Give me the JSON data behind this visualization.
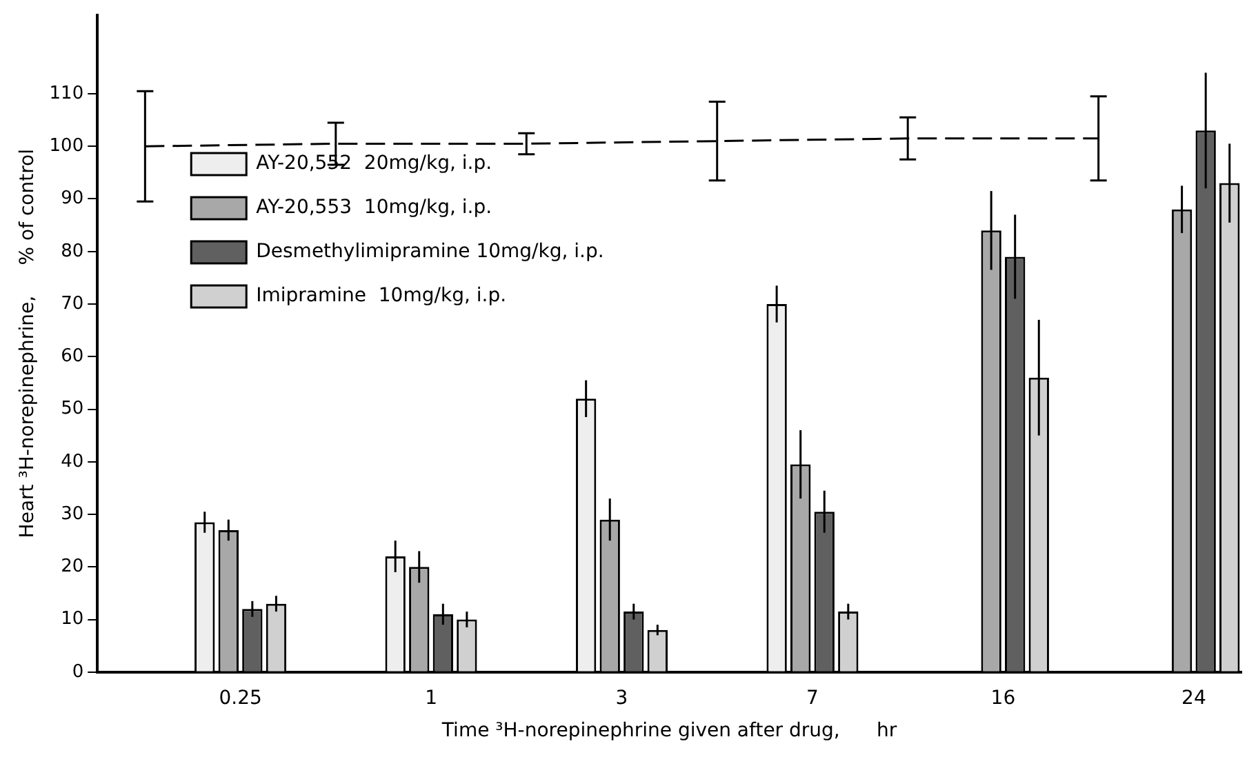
{
  "chart_data": {
    "type": "bar",
    "xlabel": "Time ³H-norepinephrine given after drug,      hr",
    "ylabel": "Heart ³H-norepinephrine,     % of control",
    "categories": [
      null,
      "0.25",
      null,
      "1",
      null,
      "3",
      null,
      "7",
      null,
      "16",
      null,
      "24"
    ],
    "series": [
      {
        "name": "AY-20,552  20mg/kg, i.p.",
        "color": "#eeeeee",
        "values": [
          null,
          28.5,
          null,
          22,
          null,
          52,
          null,
          70,
          null,
          null,
          null,
          null
        ],
        "errors": [
          null,
          2,
          null,
          3,
          null,
          3.5,
          null,
          3.5,
          null,
          null,
          null,
          null
        ]
      },
      {
        "name": "AY-20,553  10mg/kg, i.p.",
        "color": "#a8a8a8",
        "values": [
          null,
          27,
          null,
          20,
          null,
          29,
          null,
          39.5,
          null,
          84,
          null,
          88
        ],
        "errors": [
          null,
          2,
          null,
          3,
          null,
          4,
          null,
          6.5,
          null,
          7.5,
          null,
          4.5
        ]
      },
      {
        "name": "Desmethylimipramine 10mg/kg, i.p.",
        "color": "#606060",
        "values": [
          null,
          12,
          null,
          11,
          null,
          11.5,
          null,
          30.5,
          null,
          79,
          null,
          103
        ],
        "errors": [
          null,
          1.5,
          null,
          2,
          null,
          1.5,
          null,
          4,
          null,
          8,
          null,
          11
        ]
      },
      {
        "name": "Imipramine  10mg/kg, i.p.",
        "color": "#d0d0d0",
        "values": [
          null,
          13,
          null,
          10,
          null,
          8,
          null,
          11.5,
          null,
          56,
          null,
          93
        ],
        "errors": [
          null,
          1.5,
          null,
          1.5,
          null,
          1,
          null,
          1.5,
          null,
          11,
          null,
          7.5
        ]
      },
      {
        "type": "line",
        "color": "#000000",
        "line_style": "dashed",
        "marker": "none",
        "values": [
          100,
          null,
          100.5,
          null,
          100.5,
          null,
          101,
          null,
          101.5,
          null,
          101.5,
          null
        ],
        "errors": [
          10.5,
          null,
          4,
          null,
          2,
          null,
          7.5,
          null,
          4,
          null,
          8,
          null
        ]
      }
    ],
    "ylim": [
      0,
      125
    ],
    "yticks": [
      0,
      10,
      20,
      30,
      40,
      50,
      60,
      70,
      80,
      90,
      100,
      110
    ],
    "grid": false,
    "legend": "top left"
  }
}
